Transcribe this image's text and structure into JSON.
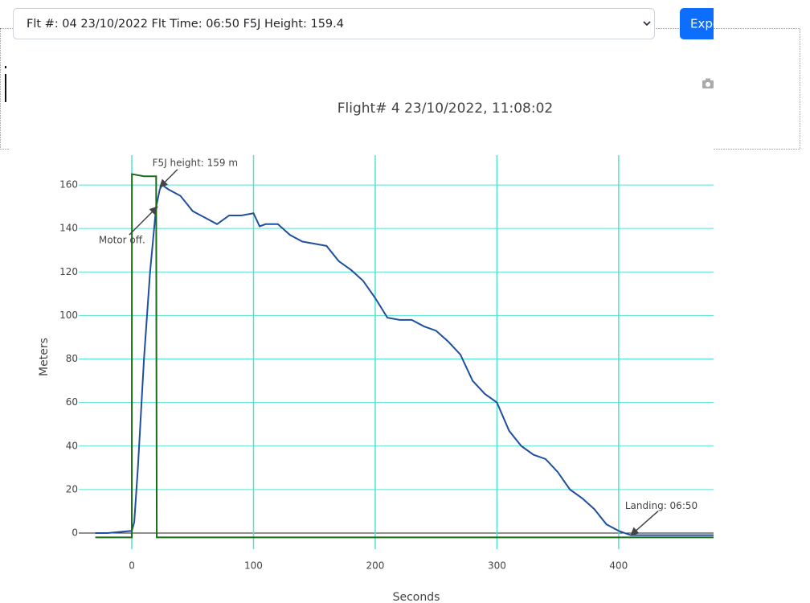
{
  "toolbar": {
    "flight_select": "Flt #: 04 23/10/2022 Flt Time: 06:50 F5J Height: 159.4",
    "export_button": "Export"
  },
  "chart_data": {
    "type": "line",
    "title": "Flight# 4 23/10/2022, 11:08:02",
    "xlabel": "Seconds",
    "ylabel": "Meters",
    "xlim": [
      -43.6,
      478
    ],
    "ylim": [
      -7.4,
      173.7
    ],
    "xticks": [
      0,
      100,
      200,
      300,
      400
    ],
    "yticks": [
      0,
      20,
      40,
      60,
      80,
      100,
      120,
      140,
      160
    ],
    "grid": true,
    "grid_color": "#52e3cf",
    "zero_line_color": "#222222",
    "series": [
      {
        "color": "#1f4fa0",
        "x": [
          -30,
          -20,
          -10,
          0,
          2,
          5,
          10,
          15,
          20,
          23,
          25,
          30,
          40,
          50,
          60,
          70,
          80,
          90,
          100,
          105,
          110,
          120,
          130,
          140,
          150,
          160,
          170,
          180,
          190,
          200,
          210,
          220,
          230,
          240,
          250,
          260,
          270,
          280,
          290,
          300,
          310,
          320,
          330,
          340,
          350,
          360,
          370,
          380,
          390,
          400,
          410,
          420,
          478
        ],
        "values": [
          0,
          0,
          0.5,
          1,
          5,
          30,
          80,
          120,
          150,
          158,
          160,
          158,
          155,
          148,
          145,
          142,
          146,
          146,
          147,
          141,
          142,
          142,
          137,
          134,
          133,
          132,
          125,
          121,
          116,
          108,
          99,
          98,
          98,
          95,
          93,
          88,
          82,
          70,
          64,
          60,
          47,
          40,
          36,
          34,
          28,
          20,
          16,
          11,
          4,
          1,
          -1,
          -1,
          -1
        ]
      },
      {
        "color": "#1a6b1a",
        "x": [
          -30,
          0,
          0.1,
          10,
          20,
          20.2,
          20.5,
          30,
          478
        ],
        "values": [
          -2,
          -2,
          165,
          164,
          164,
          82,
          -2,
          -2,
          -2
        ]
      }
    ],
    "annotations": [
      {
        "text": "F5J height: 159 m",
        "x": 23,
        "y": 159
      },
      {
        "text": "Motor off.",
        "x": 21,
        "y": 150
      },
      {
        "text": "Landing: 06:50",
        "x": 410,
        "y": -1
      }
    ]
  }
}
